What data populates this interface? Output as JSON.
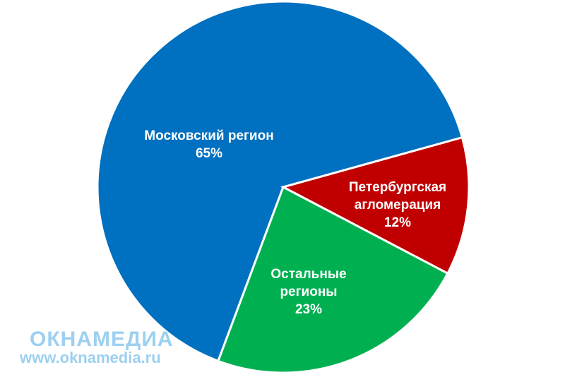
{
  "chart_data": {
    "type": "pie",
    "categories": [
      "Московский регион",
      "Петербургская агломерация",
      "Остальные регионы"
    ],
    "values": [
      65,
      12,
      23
    ],
    "value_labels": [
      "65%",
      "12%",
      "23%"
    ],
    "colors": [
      "#0070c0",
      "#c00000",
      "#00b050"
    ]
  },
  "watermark": {
    "brand": "ОКНАМЕДИА",
    "url": "www.oknamedia.ru"
  }
}
